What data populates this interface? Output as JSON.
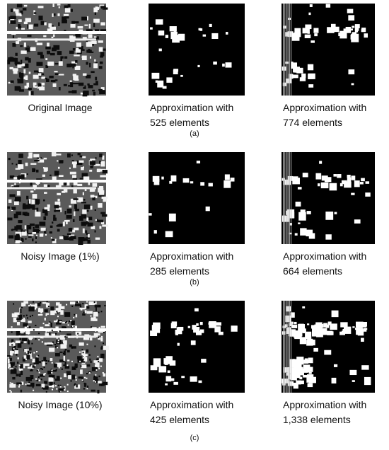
{
  "figure": {
    "rows": [
      {
        "label": "(a)",
        "panels": [
          {
            "caption": [
              "Original Image"
            ]
          },
          {
            "caption": [
              "Approximation with",
              "525 elements"
            ]
          },
          {
            "caption": [
              "Approximation with",
              "774 elements"
            ]
          }
        ]
      },
      {
        "label": "(b)",
        "panels": [
          {
            "caption": [
              "Noisy Image (1%)"
            ]
          },
          {
            "caption": [
              "Approximation with",
              "285 elements"
            ]
          },
          {
            "caption": [
              "Approximation with",
              "664 elements"
            ]
          }
        ]
      },
      {
        "label": "(c)",
        "panels": [
          {
            "caption": [
              "Noisy Image (10%)"
            ]
          },
          {
            "caption": [
              "Approximation with",
              "425 elements"
            ]
          },
          {
            "caption": [
              "Approximation with",
              "1,338 elements"
            ]
          }
        ]
      }
    ]
  }
}
